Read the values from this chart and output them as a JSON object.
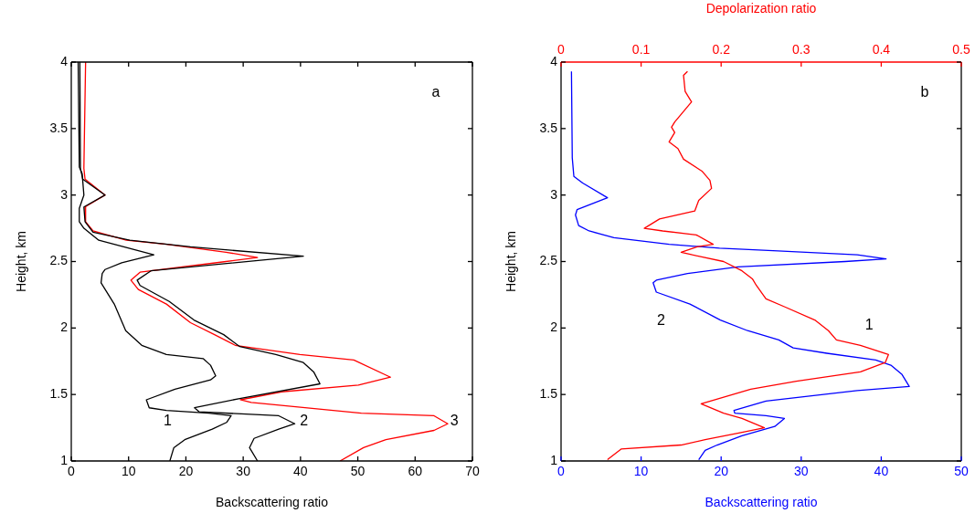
{
  "chart_data": [
    {
      "type": "line",
      "xlabel": "Backscattering ratio",
      "ylabel": "Height, km",
      "xlim": [
        0,
        70
      ],
      "xticks": [
        0,
        10,
        20,
        30,
        40,
        50,
        60,
        70
      ],
      "ylim": [
        1,
        4
      ],
      "yticks": [
        1,
        1.5,
        2,
        2.5,
        3,
        3.5,
        4
      ],
      "grid": false,
      "legend": false,
      "series": [
        {
          "name": "1",
          "color": "#000000",
          "x": [
            1.2,
            1.4,
            1.9,
            2.2,
            1.4,
            1.4,
            2.2,
            4.8,
            14.4,
            8.8,
            5.9,
            5.4,
            5.2,
            7.5,
            9.5,
            12.3,
            16.6,
            23,
            24.3,
            25.2,
            24.3,
            18.1,
            13.1,
            13.6,
            16.6,
            24,
            27.9,
            27.1,
            24.6,
            19.8,
            17.9,
            17.2
          ],
          "values": [
            4,
            3.21,
            3.16,
            3.0,
            2.9,
            2.8,
            2.75,
            2.66,
            2.55,
            2.49,
            2.44,
            2.41,
            2.34,
            2.18,
            1.98,
            1.87,
            1.8,
            1.77,
            1.72,
            1.64,
            1.61,
            1.54,
            1.46,
            1.4,
            1.38,
            1.36,
            1.34,
            1.29,
            1.24,
            1.16,
            1.1,
            1.0
          ]
        },
        {
          "name": "2",
          "color": "#000000",
          "x": [
            1.5,
            1.6,
            2.0,
            5.9,
            2.2,
            2.4,
            3.8,
            10.2,
            20.8,
            40.5,
            33,
            13.9,
            11.5,
            12,
            17.1,
            21.4,
            26.6,
            29.4,
            35.7,
            40.5,
            42.3,
            43.4,
            29.4,
            21.5,
            22.3,
            36.2,
            39,
            36.2,
            31.9,
            31.1,
            32.5
          ],
          "values": [
            4,
            3.2,
            3.12,
            3.0,
            2.91,
            2.8,
            2.72,
            2.66,
            2.61,
            2.54,
            2.51,
            2.43,
            2.36,
            2.32,
            2.2,
            2.06,
            1.95,
            1.86,
            1.8,
            1.74,
            1.67,
            1.58,
            1.47,
            1.4,
            1.37,
            1.34,
            1.28,
            1.24,
            1.17,
            1.1,
            1.0
          ]
        },
        {
          "name": "3",
          "color": "#ff0000",
          "x": [
            2.5,
            2.2,
            2.4,
            5.9,
            2.4,
            2.5,
            3.8,
            9.6,
            16.6,
            27,
            32.5,
            27,
            12,
            10.4,
            11.7,
            16.6,
            20.8,
            25,
            28.6,
            39.9,
            49.3,
            55.7,
            50.1,
            36.7,
            29.5,
            31.4,
            50.6,
            63.3,
            65.7,
            63.3,
            54.9,
            51,
            46.9
          ],
          "values": [
            4,
            3.2,
            3.12,
            3.0,
            2.91,
            2.8,
            2.73,
            2.66,
            2.63,
            2.57,
            2.53,
            2.5,
            2.42,
            2.36,
            2.29,
            2.18,
            2.04,
            1.95,
            1.87,
            1.8,
            1.76,
            1.63,
            1.57,
            1.52,
            1.46,
            1.44,
            1.36,
            1.34,
            1.28,
            1.23,
            1.16,
            1.1,
            1.0
          ]
        }
      ],
      "annotations": [
        "a"
      ]
    },
    {
      "type": "line",
      "xlabel": "Backscattering ratio",
      "x2label": "Depolarization ratio",
      "ylabel": "Height, km",
      "xlim": [
        0,
        50
      ],
      "xticks": [
        0,
        10,
        20,
        30,
        40,
        50
      ],
      "x2lim": [
        0,
        0.5
      ],
      "x2ticks": [
        0,
        0.1,
        0.2,
        0.3,
        0.4,
        0.5
      ],
      "ylim": [
        1,
        4
      ],
      "yticks": [
        1,
        1.5,
        2,
        2.5,
        3,
        3.5,
        4
      ],
      "grid": false,
      "legend": false,
      "series": [
        {
          "name": "1",
          "color": "#ff0000",
          "axis": "x2",
          "x": [
            0.158,
            0.153,
            0.155,
            0.163,
            0.142,
            0.138,
            0.142,
            0.135,
            0.146,
            0.153,
            0.176,
            0.186,
            0.188,
            0.172,
            0.167,
            0.123,
            0.104,
            0.127,
            0.169,
            0.19,
            0.17,
            0.15,
            0.164,
            0.203,
            0.226,
            0.239,
            0.244,
            0.256,
            0.279,
            0.317,
            0.334,
            0.344,
            0.374,
            0.409,
            0.405,
            0.374,
            0.294,
            0.237,
            0.175,
            0.203,
            0.226,
            0.254,
            0.222,
            0.18,
            0.15,
            0.075,
            0.058
          ],
          "values": [
            3.93,
            3.9,
            3.78,
            3.7,
            3.55,
            3.51,
            3.47,
            3.4,
            3.35,
            3.27,
            3.18,
            3.11,
            3.05,
            2.96,
            2.88,
            2.82,
            2.75,
            2.73,
            2.7,
            2.63,
            2.61,
            2.57,
            2.55,
            2.5,
            2.43,
            2.37,
            2.32,
            2.22,
            2.16,
            2.06,
            1.98,
            1.91,
            1.87,
            1.8,
            1.74,
            1.67,
            1.6,
            1.54,
            1.43,
            1.36,
            1.32,
            1.25,
            1.21,
            1.16,
            1.12,
            1.09,
            1.01
          ]
        },
        {
          "name": "2",
          "color": "#0000ff",
          "x": [
            1.3,
            1.4,
            1.6,
            2.7,
            5.8,
            2.0,
            1.8,
            2.2,
            3.5,
            6.6,
            13.5,
            19.8,
            27.1,
            37,
            40.6,
            35.5,
            22.1,
            15.8,
            11.9,
            11.5,
            11.9,
            16.1,
            19.9,
            23.3,
            27.2,
            29,
            33.2,
            39.3,
            41.2,
            42.6,
            43.5,
            37,
            25.6,
            21.6,
            21.7,
            25.6,
            27.9,
            26.7,
            22.6,
            19.5,
            18,
            17.2
          ],
          "values": [
            3.93,
            3.28,
            3.14,
            3.09,
            2.98,
            2.89,
            2.85,
            2.77,
            2.73,
            2.68,
            2.63,
            2.6,
            2.58,
            2.55,
            2.52,
            2.5,
            2.46,
            2.41,
            2.36,
            2.34,
            2.27,
            2.18,
            2.06,
            1.98,
            1.91,
            1.85,
            1.81,
            1.76,
            1.72,
            1.65,
            1.56,
            1.53,
            1.45,
            1.38,
            1.36,
            1.34,
            1.32,
            1.26,
            1.19,
            1.12,
            1.08,
            1.01
          ]
        }
      ],
      "annotations": [
        "b"
      ]
    }
  ]
}
